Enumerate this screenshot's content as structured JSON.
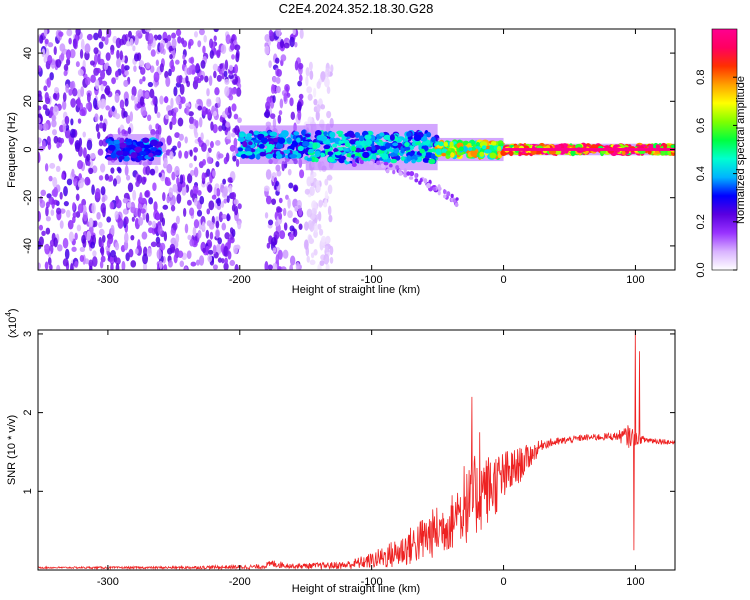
{
  "title": "C2E4.2024.352.18.30.G28",
  "chart_data": [
    {
      "type": "heatmap",
      "xlabel": "Height of straight line (km)",
      "ylabel": "Frequency (Hz)",
      "xlim": [
        -353,
        130
      ],
      "ylim": [
        -50,
        50
      ],
      "xticks": [
        -300,
        -200,
        -100,
        0,
        100
      ],
      "yticks": [
        -40,
        -20,
        0,
        20,
        40
      ],
      "colorbar": {
        "label": "Normalized spectral amplitude",
        "range": [
          0,
          1
        ],
        "ticks": [
          0.0,
          0.2,
          0.4,
          0.6,
          0.8
        ],
        "colors": [
          "#ffffff",
          "#d9b3ff",
          "#9933ff",
          "#5a00e0",
          "#0000ff",
          "#00b4ff",
          "#00ffd0",
          "#00ff40",
          "#80ff00",
          "#ffff00",
          "#ffa000",
          "#ff3000",
          "#ff0060",
          "#ff0090"
        ]
      },
      "features": [
        {
          "kind": "scatter-noise",
          "x_range": [
            -353,
            -200
          ],
          "y_range": [
            -50,
            50
          ],
          "amplitude": 0.15
        },
        {
          "kind": "scatter-noise",
          "x_range": [
            -180,
            -153
          ],
          "y_range": [
            -50,
            50
          ],
          "amplitude": 0.15
        },
        {
          "kind": "scatter-noise",
          "x_range": [
            -150,
            -130
          ],
          "y_range": [
            -50,
            35
          ],
          "amplitude": 0.05
        },
        {
          "kind": "carrier-band",
          "x_range": [
            -300,
            -260
          ],
          "y_center": 0,
          "y_halfwidth": 4,
          "amplitude": 0.35
        },
        {
          "kind": "carrier-band",
          "x_range": [
            -200,
            -150
          ],
          "y_center": 2,
          "y_halfwidth": 5,
          "amplitude": 0.4
        },
        {
          "kind": "carrier-band",
          "x_range": [
            -150,
            -50
          ],
          "y_center": 1,
          "y_halfwidth": 6,
          "amplitude": 0.45
        },
        {
          "kind": "carrier-band",
          "x_range": [
            -50,
            0
          ],
          "y_center": 0,
          "y_halfwidth": 3,
          "amplitude": 0.7
        },
        {
          "kind": "carrier-band",
          "x_range": [
            0,
            130
          ],
          "y_center": 0,
          "y_halfwidth": 1.5,
          "amplitude": 0.95
        },
        {
          "kind": "tail",
          "x_range": [
            -120,
            -35
          ],
          "y_range": [
            -5,
            -22
          ],
          "amplitude": 0.12
        }
      ]
    },
    {
      "type": "line",
      "xlabel": "Height of straight line (km)",
      "ylabel": "SNR (10 * v/v)",
      "y_multiplier": "(x10",
      "y_multiplier_exp": "4",
      "y_multiplier_close": ")",
      "xlim": [
        -353,
        130
      ],
      "ylim": [
        0,
        3.05
      ],
      "xticks": [
        -300,
        -200,
        -100,
        0,
        100
      ],
      "yticks": [
        1,
        2,
        3
      ],
      "color": "#ee2222",
      "envelope": [
        {
          "x": -353,
          "mean": 0.03,
          "spread": 0.01
        },
        {
          "x": -250,
          "mean": 0.03,
          "spread": 0.015
        },
        {
          "x": -185,
          "mean": 0.04,
          "spread": 0.03
        },
        {
          "x": -175,
          "mean": 0.08,
          "spread": 0.05
        },
        {
          "x": -160,
          "mean": 0.05,
          "spread": 0.03
        },
        {
          "x": -120,
          "mean": 0.06,
          "spread": 0.05
        },
        {
          "x": -100,
          "mean": 0.12,
          "spread": 0.1
        },
        {
          "x": -80,
          "mean": 0.22,
          "spread": 0.2
        },
        {
          "x": -60,
          "mean": 0.4,
          "spread": 0.3
        },
        {
          "x": -40,
          "mean": 0.6,
          "spread": 0.35
        },
        {
          "x": -25,
          "mean": 0.85,
          "spread": 0.5
        },
        {
          "x": -10,
          "mean": 1.05,
          "spread": 0.45
        },
        {
          "x": 10,
          "mean": 1.3,
          "spread": 0.25
        },
        {
          "x": 30,
          "mean": 1.6,
          "spread": 0.06
        },
        {
          "x": 60,
          "mean": 1.68,
          "spread": 0.04
        },
        {
          "x": 85,
          "mean": 1.7,
          "spread": 0.05
        },
        {
          "x": 95,
          "mean": 1.7,
          "spread": 0.15
        },
        {
          "x": 105,
          "mean": 1.66,
          "spread": 0.05
        },
        {
          "x": 130,
          "mean": 1.62,
          "spread": 0.03
        }
      ],
      "spikes": [
        {
          "x": -48,
          "y": 0.6
        },
        {
          "x": -35,
          "y": 0.98
        },
        {
          "x": -30,
          "y": 1.32
        },
        {
          "x": -24,
          "y": 2.2
        },
        {
          "x": -22,
          "y": 1.45
        },
        {
          "x": -18,
          "y": 1.75
        },
        {
          "x": -15,
          "y": 1.3
        },
        {
          "x": 99,
          "y": 0.25
        },
        {
          "x": 100,
          "y": 3.05
        },
        {
          "x": 102,
          "y": 1.6
        },
        {
          "x": 103,
          "y": 2.78
        }
      ]
    }
  ]
}
